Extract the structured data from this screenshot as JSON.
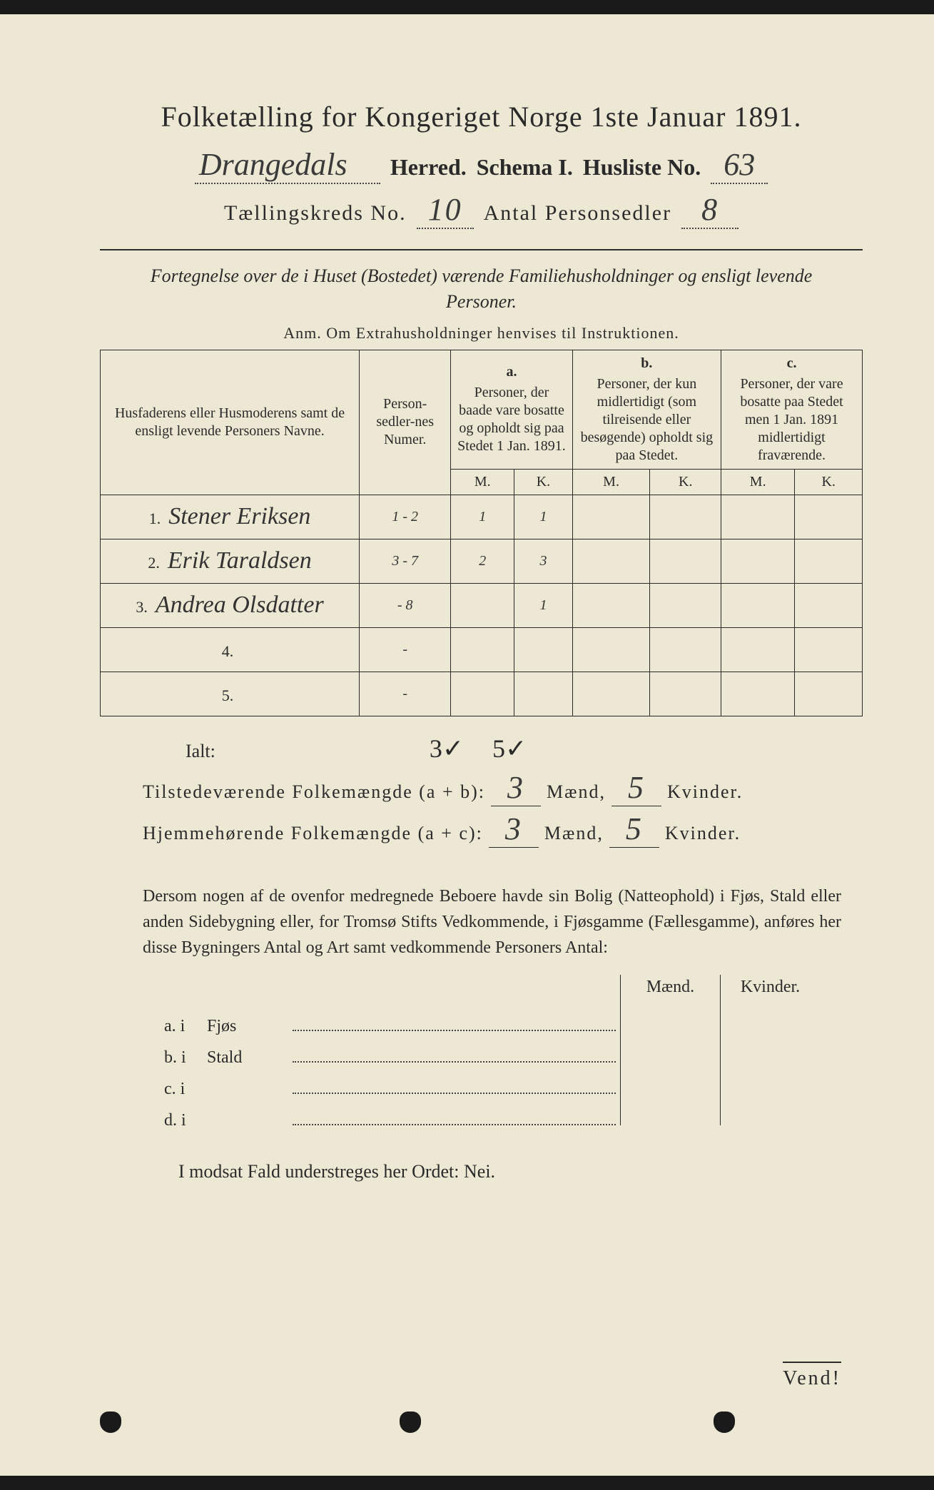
{
  "title": "Folketælling for Kongeriget Norge 1ste Januar 1891.",
  "header": {
    "herred_value": "Drangedals",
    "herred_label": "Herred.",
    "schema_label": "Schema I.",
    "husliste_label": "Husliste No.",
    "husliste_value": "63",
    "kreds_label": "Tællingskreds No.",
    "kreds_value": "10",
    "personsedler_label": "Antal Personsedler",
    "personsedler_value": "8"
  },
  "fortegnelse": "Fortegnelse over de i Huset (Bostedet) værende Familiehusholdninger og ensligt levende Personer.",
  "anm": "Anm.  Om Extrahusholdninger henvises til Instruktionen.",
  "columns": {
    "names": "Husfaderens eller Husmoderens samt de ensligt levende Personers Navne.",
    "numer": "Person-sedler-nes Numer.",
    "a": {
      "lett": "a.",
      "text": "Personer, der baade vare bosatte og opholdt sig paa Stedet 1 Jan. 1891."
    },
    "b": {
      "lett": "b.",
      "text": "Personer, der kun midlertidigt (som tilreisende eller besøgende) opholdt sig paa Stedet."
    },
    "c": {
      "lett": "c.",
      "text": "Personer, der vare bosatte paa Stedet men 1 Jan. 1891 midlertidigt fraværende."
    },
    "m": "M.",
    "k": "K."
  },
  "rows": [
    {
      "n": "1.",
      "name": "Stener Eriksen",
      "numer": "1 - 2",
      "a_m": "1",
      "a_k": "1",
      "b_m": "",
      "b_k": "",
      "c_m": "",
      "c_k": ""
    },
    {
      "n": "2.",
      "name": "Erik Taraldsen",
      "numer": "3 - 7",
      "a_m": "2",
      "a_k": "3",
      "b_m": "",
      "b_k": "",
      "c_m": "",
      "c_k": ""
    },
    {
      "n": "3.",
      "name": "Andrea Olsdatter",
      "numer": "- 8",
      "a_m": "",
      "a_k": "1",
      "b_m": "",
      "b_k": "",
      "c_m": "",
      "c_k": ""
    },
    {
      "n": "4.",
      "name": "",
      "numer": "-",
      "a_m": "",
      "a_k": "",
      "b_m": "",
      "b_k": "",
      "c_m": "",
      "c_k": ""
    },
    {
      "n": "5.",
      "name": "",
      "numer": "-",
      "a_m": "",
      "a_k": "",
      "b_m": "",
      "b_k": "",
      "c_m": "",
      "c_k": ""
    }
  ],
  "ialt": {
    "label": "Ialt:",
    "m": "3✓",
    "k": "5✓"
  },
  "summary": {
    "line1_label": "Tilstedeværende Folkemængde (a + b):",
    "line1_m": "3",
    "line1_k": "5",
    "line2_label": "Hjemmehørende Folkemængde (a + c):",
    "line2_m": "3",
    "line2_k": "5",
    "maend": "Mænd,",
    "kvinder": "Kvinder."
  },
  "paragraph": "Dersom nogen af de ovenfor medregnede Beboere havde sin Bolig (Natteophold) i Fjøs, Stald eller anden Sidebygning eller, for Tromsø Stifts Vedkommende, i Fjøsgamme (Fællesgamme), anføres her disse Bygningers Antal og Art samt vedkommende Personers Antal:",
  "side": {
    "maend": "Mænd.",
    "kvinder": "Kvinder.",
    "rows": [
      {
        "lbl": "a.  i",
        "txt": "Fjøs"
      },
      {
        "lbl": "b.  i",
        "txt": "Stald"
      },
      {
        "lbl": "c.  i",
        "txt": ""
      },
      {
        "lbl": "d.  i",
        "txt": ""
      }
    ]
  },
  "modsat": "I modsat Fald understreges her Ordet: Nei.",
  "vend": "Vend!",
  "colors": {
    "paper": "#ede8d4",
    "ink": "#2a2a2a",
    "background": "#1a1a1a"
  }
}
